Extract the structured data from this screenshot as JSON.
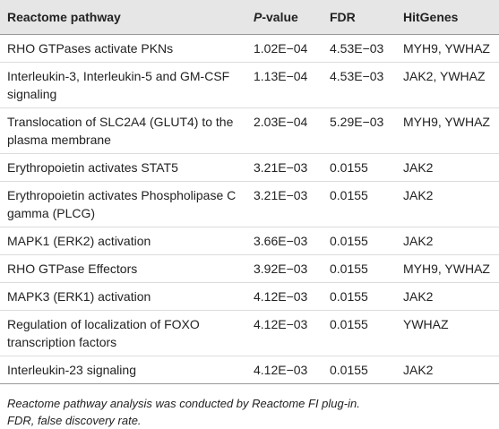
{
  "table": {
    "header": [
      "Reactome pathway",
      "P-value",
      "FDR",
      "HitGenes"
    ],
    "rows": [
      [
        "RHO GTPases activate PKNs",
        "1.02E−04",
        "4.53E−03",
        "MYH9, YWHAZ"
      ],
      [
        "Interleukin-3, Interleukin-5 and GM-CSF signaling",
        "1.13E−04",
        "4.53E−03",
        "JAK2, YWHAZ"
      ],
      [
        "Translocation of SLC2A4 (GLUT4) to the plasma membrane",
        "2.03E−04",
        "5.29E−03",
        "MYH9, YWHAZ"
      ],
      [
        "Erythropoietin activates STAT5",
        "3.21E−03",
        "0.0155",
        "JAK2"
      ],
      [
        "Erythropoietin activates Phospholipase C gamma (PLCG)",
        "3.21E−03",
        "0.0155",
        "JAK2"
      ],
      [
        "MAPK1 (ERK2) activation",
        "3.66E−03",
        "0.0155",
        "JAK2"
      ],
      [
        "RHO GTPase Effectors",
        "3.92E−03",
        "0.0155",
        "MYH9, YWHAZ"
      ],
      [
        "MAPK3 (ERK1) activation",
        "4.12E−03",
        "0.0155",
        "JAK2"
      ],
      [
        "Regulation of localization of FOXO transcription factors",
        "4.12E−03",
        "0.0155",
        "YWHAZ"
      ],
      [
        "Interleukin-23 signaling",
        "4.12E−03",
        "0.0155",
        "JAK2"
      ]
    ]
  },
  "footnotes": [
    "Reactome pathway analysis was conducted by Reactome FI plug-in.",
    "FDR, false discovery rate."
  ]
}
